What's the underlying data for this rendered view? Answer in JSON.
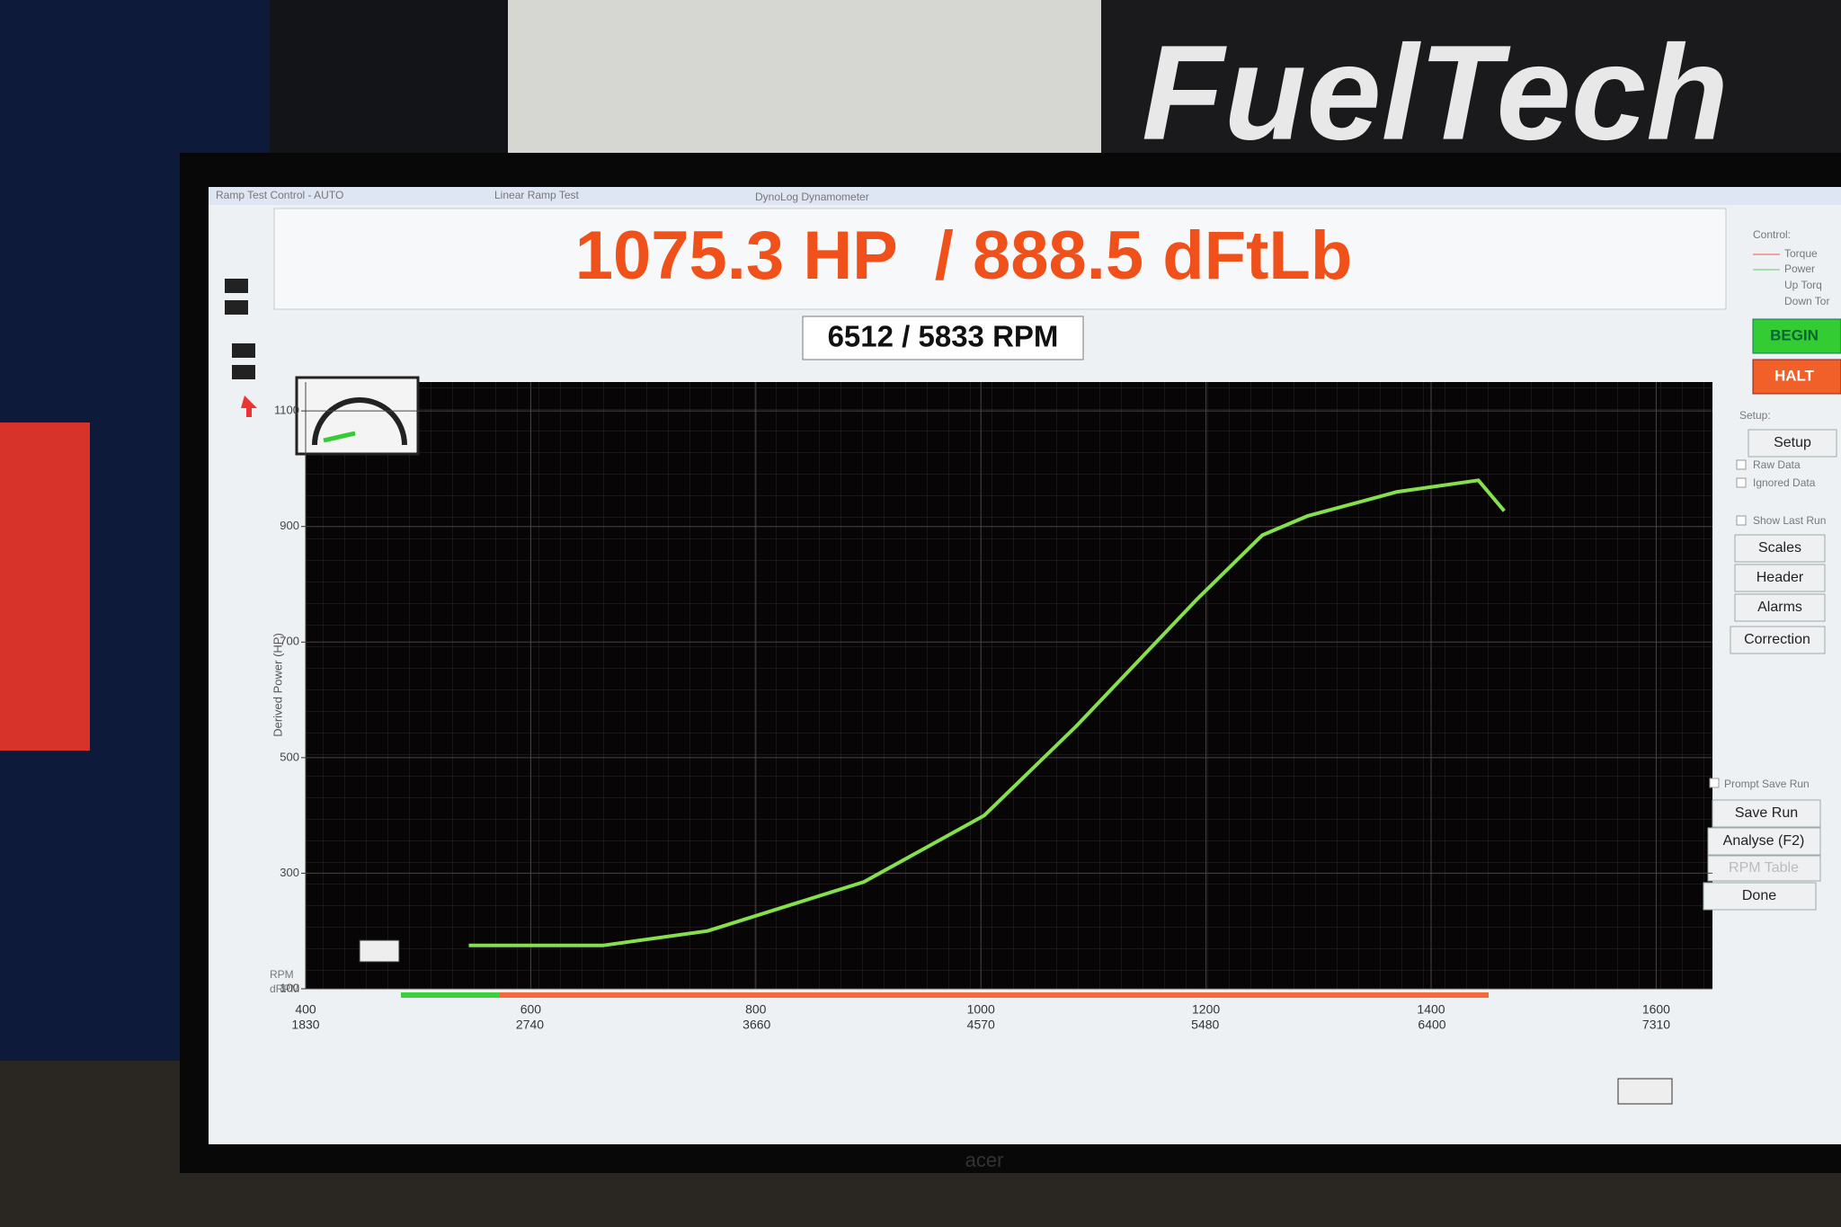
{
  "background": {
    "logo": "FuelTech",
    "brand": "acer"
  },
  "window": {
    "titles": [
      "Ramp Test Control - AUTO",
      "Linear Ramp Test",
      "DynoLog Dynamometer"
    ]
  },
  "readout": {
    "main": "1075.3 HP  / 888.5 dFtLb",
    "rpm": "6512 / 5833 RPM"
  },
  "graph": {
    "ylabel": "Derived Power (HP)",
    "x_label": "RPM",
    "x2_label": "dRPM",
    "ylim": [
      100,
      1150
    ],
    "yticks": [
      1100,
      900,
      700,
      500,
      300,
      100
    ],
    "xlim": [
      400,
      1650
    ],
    "xticks": [
      400,
      600,
      800,
      1000,
      1200,
      1400,
      1600
    ],
    "x2lim": [
      1830,
      7538
    ],
    "x2ticks": [
      1830,
      2740,
      3660,
      4570,
      5480,
      6400,
      7310
    ],
    "curve": {
      "color": "#86e04c",
      "x": [
        545,
        664,
        757,
        896,
        1003,
        1085,
        1193,
        1250,
        1290,
        1370,
        1442,
        1465
      ],
      "y": [
        175,
        175,
        200,
        285,
        400,
        555,
        776,
        885,
        918,
        960,
        980,
        927
      ]
    }
  },
  "panel": {
    "control": "Control:",
    "legend": [
      "Torque",
      "Power",
      "Up Torq",
      "Down Tor"
    ],
    "begin": "BEGIN",
    "halt": "HALT",
    "setup_heading": "Setup:",
    "setup": "Setup",
    "checks": [
      "Raw Data",
      "Ignored Data",
      "Show Last Run"
    ],
    "buttons": [
      "Scales",
      "Header",
      "Alarms",
      "Correction"
    ],
    "prompt": "Prompt Save Run",
    "save": "Save Run",
    "analyse": "Analyse (F2)",
    "rpm_table": "RPM Table",
    "done": "Done"
  }
}
